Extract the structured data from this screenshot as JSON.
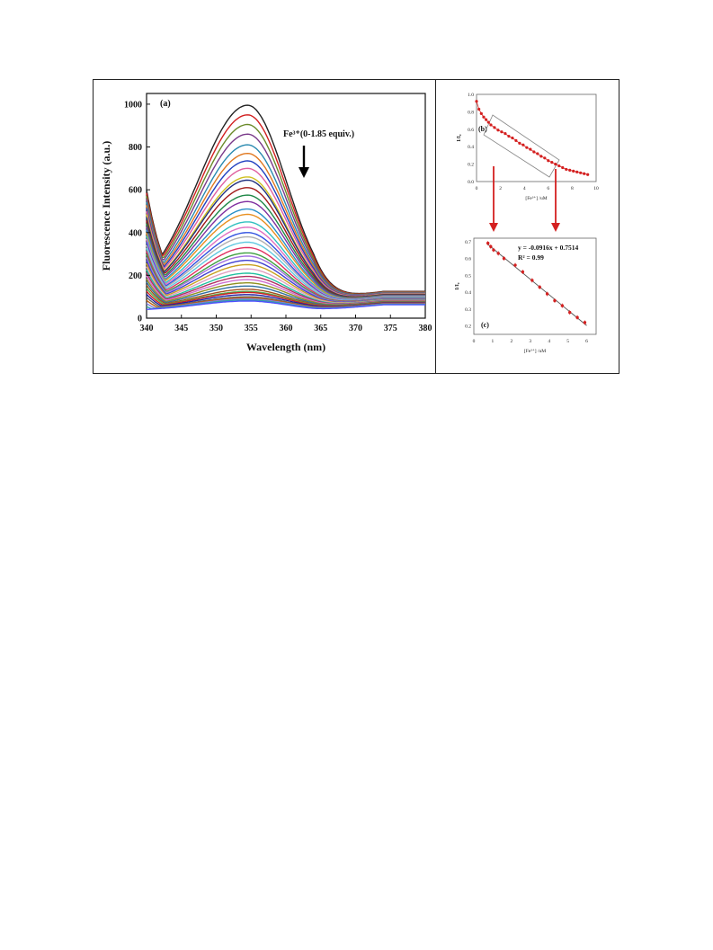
{
  "chart_data": [
    {
      "panel_label": "(a)",
      "type": "line",
      "xlabel": "Wavelength (nm)",
      "ylabel": "Fluorescence Intensity (a.u.)",
      "xlim": [
        340,
        380
      ],
      "ylim": [
        0,
        1050
      ],
      "xticks": [
        "340",
        "345",
        "350",
        "355",
        "360",
        "365",
        "370",
        "375",
        "380"
      ],
      "yticks": [
        "0",
        "200",
        "400",
        "600",
        "800",
        "1000"
      ],
      "annotation": "Fe³⁺(0-1.85 equiv.)",
      "peak_wavelength": 354.5,
      "series_peaks": [
        995,
        950,
        905,
        860,
        810,
        770,
        735,
        700,
        660,
        645,
        610,
        575,
        545,
        510,
        485,
        450,
        425,
        400,
        380,
        355,
        330,
        305,
        290,
        270,
        250,
        230,
        210,
        195,
        180,
        165,
        150,
        135,
        125,
        120,
        110,
        100,
        95,
        90,
        85,
        80
      ],
      "series_colors": [
        "#222222",
        "#d22020",
        "#6a8a2a",
        "#7a3a8a",
        "#2a8ab0",
        "#e07820",
        "#2040c0",
        "#e060a0",
        "#d0c020",
        "#203080",
        "#a01818",
        "#208848",
        "#8030a0",
        "#2890c8",
        "#e89020",
        "#30c0c0",
        "#e070c0",
        "#3050e0",
        "#b0b0b0",
        "#60c8e0",
        "#e03060",
        "#40a040",
        "#a070e0",
        "#4040d0",
        "#c8a020",
        "#e0a0c0",
        "#20c0a0",
        "#b03060",
        "#d070d0",
        "#909020",
        "#3070a0",
        "#a05020",
        "#50b050",
        "#d02020",
        "#2020a0",
        "#606060",
        "#c06010",
        "#8080e0",
        "#30a0a0",
        "#5050ff"
      ],
      "grid": false,
      "legend": "none"
    },
    {
      "panel_label": "(b)",
      "type": "scatter",
      "xlabel": "[Fe³⁺] /uM",
      "ylabel": "I/I₀",
      "xlim": [
        0,
        10
      ],
      "ylim": [
        0,
        1.0
      ],
      "xticks": [
        "0",
        "2",
        "4",
        "6",
        "8",
        "10"
      ],
      "yticks": [
        "0.0",
        "0.2",
        "0.4",
        "0.6",
        "0.8",
        "1.0"
      ],
      "x": [
        0,
        0.2,
        0.4,
        0.6,
        0.8,
        1.0,
        1.2,
        1.5,
        1.8,
        2.1,
        2.4,
        2.7,
        3.0,
        3.3,
        3.6,
        3.9,
        4.2,
        4.5,
        4.8,
        5.1,
        5.4,
        5.7,
        6.0,
        6.3,
        6.6,
        6.9,
        7.2,
        7.5,
        7.8,
        8.1,
        8.4,
        8.7,
        9.0,
        9.3
      ],
      "y": [
        0.92,
        0.83,
        0.78,
        0.74,
        0.71,
        0.68,
        0.65,
        0.62,
        0.59,
        0.57,
        0.55,
        0.52,
        0.5,
        0.47,
        0.44,
        0.42,
        0.39,
        0.37,
        0.34,
        0.32,
        0.29,
        0.27,
        0.24,
        0.22,
        0.2,
        0.18,
        0.16,
        0.14,
        0.13,
        0.12,
        0.11,
        0.1,
        0.09,
        0.08
      ],
      "color": "#d42020"
    },
    {
      "panel_label": "(c)",
      "type": "scatter",
      "xlabel": "[Fe³⁺] /uM",
      "ylabel": "I/I₀",
      "xlim": [
        0,
        6.5
      ],
      "ylim": [
        0.15,
        0.72
      ],
      "xticks": [
        "0",
        "1",
        "2",
        "3",
        "4",
        "5",
        "6"
      ],
      "yticks": [
        "0.2",
        "0.3",
        "0.4",
        "0.5",
        "0.6",
        "0.7"
      ],
      "x": [
        0.75,
        0.9,
        1.05,
        1.3,
        1.6,
        2.2,
        2.6,
        3.1,
        3.5,
        3.9,
        4.3,
        4.7,
        5.1,
        5.5,
        5.9
      ],
      "y": [
        0.69,
        0.67,
        0.65,
        0.63,
        0.6,
        0.56,
        0.52,
        0.47,
        0.43,
        0.39,
        0.35,
        0.32,
        0.28,
        0.25,
        0.22
      ],
      "fit_line": {
        "slope": -0.0916,
        "intercept": 0.7514,
        "x_range": [
          0.7,
          6.0
        ]
      },
      "equation": "y = -0.0916x + 0.7514",
      "r_squared": "R² = 0.99",
      "color": "#d42020"
    }
  ]
}
